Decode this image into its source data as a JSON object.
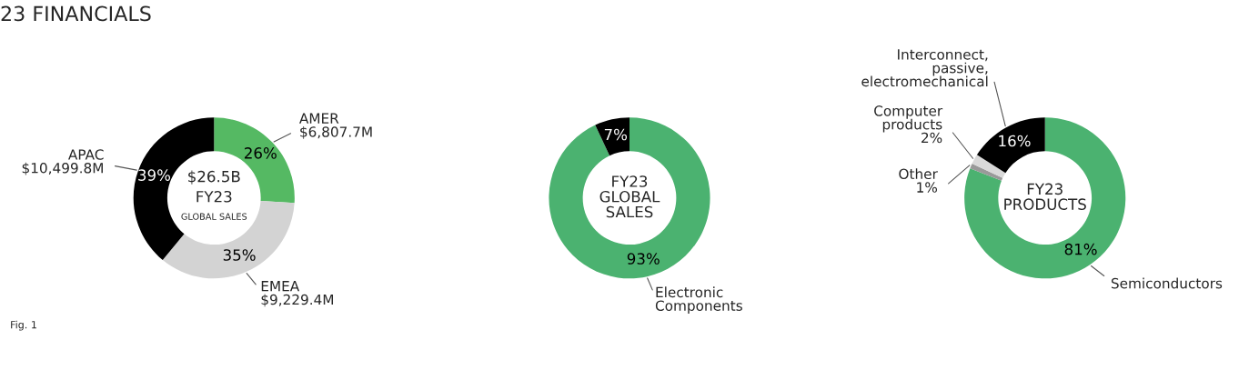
{
  "chart_data": [
    {
      "type": "donut",
      "title": "23 FINANCIALS",
      "categories": [
        "AMER\n$6,807.7M",
        "EMEA\n$9,229.4M",
        "APAC\n$10,499.8M"
      ],
      "values": [
        26,
        35,
        39
      ],
      "value_labels": [
        "26%",
        "35%",
        "39%"
      ],
      "colors": [
        "#55b963",
        "#d3d3d3",
        "#000000"
      ],
      "annotations": [
        "$26.5B",
        "FY23",
        "GLOBAL SALES",
        "Fig. 1"
      ]
    },
    {
      "type": "donut",
      "categories": [
        "Electronic\nComponents",
        null
      ],
      "values": [
        93,
        7
      ],
      "value_labels": [
        "93%",
        "7%"
      ],
      "colors": [
        "#4bb270",
        "#000000"
      ],
      "annotations": [
        "FY23\nGLOBAL\nSALES"
      ]
    },
    {
      "type": "donut",
      "categories": [
        "Semiconductors",
        "Other",
        "Computer\nproducts",
        "Interconnect,\npassive,\nelectromechanical"
      ],
      "values": [
        81,
        1,
        2,
        16
      ],
      "value_labels": [
        "81%",
        "1%",
        "2%",
        "16%"
      ],
      "colors": [
        "#4bb270",
        "#999999",
        "#d9d9d9",
        "#000000"
      ],
      "annotations": [
        "FY23\nPRODUCTS"
      ]
    }
  ]
}
